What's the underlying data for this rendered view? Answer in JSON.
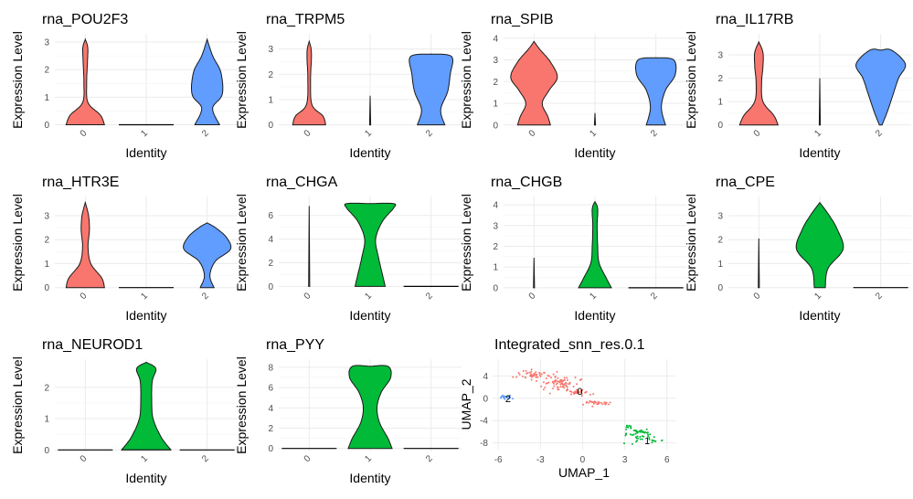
{
  "chart_data": [
    {
      "type": "violin",
      "title": "rna_POU2F3",
      "xlabel": "Identity",
      "ylabel": "Expression Level",
      "categories": [
        "0",
        "1",
        "2"
      ],
      "colors": [
        "#F8766D",
        "#00BA38",
        "#619CFF"
      ],
      "ylim": [
        -0.05,
        3.3
      ],
      "yticks": [
        0,
        1,
        2,
        3
      ],
      "ymax": [
        3.1,
        0,
        3.1
      ],
      "profiles": [
        [
          [
            0,
            0.7
          ],
          [
            0.35,
            0.55
          ],
          [
            0.8,
            0.1
          ],
          [
            1.5,
            0.05
          ],
          [
            2.3,
            0.08
          ],
          [
            2.8,
            0.09
          ],
          [
            3.1,
            0
          ]
        ],
        [
          [
            0,
            1
          ],
          [
            0,
            0
          ]
        ],
        [
          [
            0,
            0.45
          ],
          [
            0.6,
            0.2
          ],
          [
            1.1,
            0.55
          ],
          [
            1.9,
            0.5
          ],
          [
            2.5,
            0.2
          ],
          [
            3.1,
            0
          ]
        ]
      ]
    },
    {
      "type": "violin",
      "title": "rna_TRPM5",
      "xlabel": "Identity",
      "ylabel": "Expression Level",
      "categories": [
        "0",
        "1",
        "2"
      ],
      "colors": [
        "#F8766D",
        "#00BA38",
        "#619CFF"
      ],
      "ylim": [
        -0.05,
        3.6
      ],
      "yticks": [
        0,
        1,
        2,
        3
      ],
      "ymax": [
        3.3,
        1.15,
        2.8
      ],
      "profiles": [
        [
          [
            0,
            0.6
          ],
          [
            0.35,
            0.5
          ],
          [
            0.8,
            0.1
          ],
          [
            1.8,
            0.05
          ],
          [
            2.6,
            0.08
          ],
          [
            3.0,
            0.07
          ],
          [
            3.3,
            0
          ]
        ],
        [
          [
            0,
            0.02
          ],
          [
            1.15,
            0
          ]
        ],
        [
          [
            0,
            0.5
          ],
          [
            0.6,
            0.35
          ],
          [
            1.3,
            0.6
          ],
          [
            2.0,
            0.7
          ],
          [
            2.7,
            0.75
          ],
          [
            2.8,
            0
          ]
        ]
      ]
    },
    {
      "type": "violin",
      "title": "rna_SPIB",
      "xlabel": "Identity",
      "ylabel": "Expression Level",
      "categories": [
        "0",
        "1",
        "2"
      ],
      "colors": [
        "#F8766D",
        "#00BA38",
        "#619CFF"
      ],
      "ylim": [
        -0.05,
        4.2
      ],
      "yticks": [
        0,
        1,
        2,
        3,
        4
      ],
      "ymax": [
        3.85,
        0.55,
        3.1
      ],
      "profiles": [
        [
          [
            0,
            0.6
          ],
          [
            0.4,
            0.5
          ],
          [
            1.0,
            0.3
          ],
          [
            1.6,
            0.55
          ],
          [
            2.2,
            0.85
          ],
          [
            2.9,
            0.6
          ],
          [
            3.5,
            0.2
          ],
          [
            3.85,
            0
          ]
        ],
        [
          [
            0,
            0.02
          ],
          [
            0.55,
            0
          ]
        ],
        [
          [
            0,
            0.35
          ],
          [
            0.8,
            0.2
          ],
          [
            1.6,
            0.35
          ],
          [
            2.3,
            0.7
          ],
          [
            3.0,
            0.65
          ],
          [
            3.1,
            0
          ]
        ]
      ]
    },
    {
      "type": "violin",
      "title": "rna_IL17RB",
      "xlabel": "Identity",
      "ylabel": "Expression Level",
      "categories": [
        "0",
        "1",
        "2"
      ],
      "colors": [
        "#F8766D",
        "#00BA38",
        "#619CFF"
      ],
      "ylim": [
        -0.05,
        3.9
      ],
      "yticks": [
        0,
        1,
        2,
        3
      ],
      "ymax": [
        3.55,
        2.0,
        3.2
      ],
      "profiles": [
        [
          [
            0,
            0.7
          ],
          [
            0.4,
            0.55
          ],
          [
            1.0,
            0.15
          ],
          [
            1.8,
            0.1
          ],
          [
            2.5,
            0.15
          ],
          [
            3.1,
            0.15
          ],
          [
            3.55,
            0
          ]
        ],
        [
          [
            0,
            0.02
          ],
          [
            2.0,
            0
          ]
        ],
        [
          [
            0,
            0.05
          ],
          [
            0.6,
            0.25
          ],
          [
            1.3,
            0.45
          ],
          [
            2.0,
            0.65
          ],
          [
            2.6,
            0.9
          ],
          [
            3.2,
            0.4
          ],
          [
            3.2,
            0
          ]
        ]
      ]
    },
    {
      "type": "violin",
      "title": "rna_HTR3E",
      "xlabel": "Identity",
      "ylabel": "Expression Level",
      "categories": [
        "0",
        "1",
        "2"
      ],
      "colors": [
        "#F8766D",
        "#00BA38",
        "#619CFF"
      ],
      "ylim": [
        -0.05,
        3.8
      ],
      "yticks": [
        0,
        1,
        2,
        3
      ],
      "ymax": [
        3.55,
        0,
        2.7
      ],
      "profiles": [
        [
          [
            0,
            0.7
          ],
          [
            0.4,
            0.6
          ],
          [
            1.0,
            0.2
          ],
          [
            1.7,
            0.1
          ],
          [
            2.4,
            0.15
          ],
          [
            3.0,
            0.12
          ],
          [
            3.55,
            0
          ]
        ],
        [
          [
            0,
            1
          ],
          [
            0,
            0
          ]
        ],
        [
          [
            0,
            0.25
          ],
          [
            0.5,
            0.1
          ],
          [
            1.1,
            0.3
          ],
          [
            1.6,
            0.85
          ],
          [
            2.1,
            0.7
          ],
          [
            2.5,
            0.3
          ],
          [
            2.7,
            0
          ]
        ]
      ]
    },
    {
      "type": "violin",
      "title": "rna_CHGA",
      "xlabel": "Identity",
      "ylabel": "Expression Level",
      "categories": [
        "0",
        "1",
        "2"
      ],
      "colors": [
        "#F8766D",
        "#00BA38",
        "#619CFF"
      ],
      "ylim": [
        -0.2,
        7.6
      ],
      "yticks": [
        0,
        2,
        4,
        6
      ],
      "ymax": [
        6.8,
        7.0,
        0
      ],
      "profiles": [
        [
          [
            0,
            0.02
          ],
          [
            6.8,
            0
          ]
        ],
        [
          [
            0,
            0.55
          ],
          [
            1.0,
            0.45
          ],
          [
            2.5,
            0.3
          ],
          [
            4.0,
            0.2
          ],
          [
            5.5,
            0.45
          ],
          [
            6.6,
            0.85
          ],
          [
            7.0,
            0.85
          ],
          [
            7.0,
            0
          ]
        ],
        [
          [
            0,
            1
          ],
          [
            0,
            0
          ]
        ]
      ]
    },
    {
      "type": "violin",
      "title": "rna_CHGB",
      "xlabel": "Identity",
      "ylabel": "Expression Level",
      "categories": [
        "0",
        "1",
        "2"
      ],
      "colors": [
        "#F8766D",
        "#00BA38",
        "#619CFF"
      ],
      "ylim": [
        -0.05,
        4.4
      ],
      "yticks": [
        0,
        1,
        2,
        3,
        4
      ],
      "ymax": [
        1.45,
        4.15,
        0
      ],
      "profiles": [
        [
          [
            0,
            0.02
          ],
          [
            1.45,
            0
          ]
        ],
        [
          [
            0,
            0.6
          ],
          [
            0.5,
            0.4
          ],
          [
            1.2,
            0.15
          ],
          [
            2.0,
            0.1
          ],
          [
            3.0,
            0.08
          ],
          [
            3.8,
            0.1
          ],
          [
            4.15,
            0
          ]
        ],
        [
          [
            0,
            1
          ],
          [
            0,
            0
          ]
        ]
      ]
    },
    {
      "type": "violin",
      "title": "rna_CPE",
      "xlabel": "Identity",
      "ylabel": "Expression Level",
      "categories": [
        "0",
        "1",
        "2"
      ],
      "colors": [
        "#F8766D",
        "#00BA38",
        "#619CFF"
      ],
      "ylim": [
        -0.05,
        3.8
      ],
      "yticks": [
        0,
        1,
        2,
        3
      ],
      "ymax": [
        2.05,
        3.55,
        0
      ],
      "profiles": [
        [
          [
            0,
            0.02
          ],
          [
            2.05,
            0
          ]
        ],
        [
          [
            0,
            0.2
          ],
          [
            0.8,
            0.3
          ],
          [
            1.6,
            0.85
          ],
          [
            2.4,
            0.65
          ],
          [
            3.0,
            0.35
          ],
          [
            3.55,
            0
          ]
        ],
        [
          [
            0,
            1
          ],
          [
            0,
            0
          ]
        ]
      ]
    },
    {
      "type": "violin",
      "title": "rna_NEUROD1",
      "xlabel": "Identity",
      "ylabel": "Expression Level",
      "categories": [
        "0",
        "1",
        "2"
      ],
      "colors": [
        "#F8766D",
        "#00BA38",
        "#619CFF"
      ],
      "ylim": [
        -0.05,
        2.9
      ],
      "yticks": [
        0,
        1,
        2
      ],
      "ymax": [
        0,
        2.8,
        0
      ],
      "profiles": [
        [
          [
            0,
            1
          ],
          [
            0,
            0
          ]
        ],
        [
          [
            0,
            0.9
          ],
          [
            0.4,
            0.55
          ],
          [
            1.0,
            0.25
          ],
          [
            1.6,
            0.2
          ],
          [
            2.2,
            0.22
          ],
          [
            2.6,
            0.35
          ],
          [
            2.8,
            0
          ]
        ],
        [
          [
            0,
            1
          ],
          [
            0,
            0
          ]
        ]
      ]
    },
    {
      "type": "violin",
      "title": "rna_PYY",
      "xlabel": "Identity",
      "ylabel": "Expression Level",
      "categories": [
        "0",
        "1",
        "2"
      ],
      "colors": [
        "#F8766D",
        "#00BA38",
        "#619CFF"
      ],
      "ylim": [
        -0.3,
        8.8
      ],
      "yticks": [
        0,
        2,
        4,
        6,
        8
      ],
      "ymax": [
        0,
        8.1,
        0
      ],
      "profiles": [
        [
          [
            0,
            1
          ],
          [
            0,
            0
          ]
        ],
        [
          [
            0,
            0.8
          ],
          [
            1.0,
            0.65
          ],
          [
            2.5,
            0.35
          ],
          [
            4.0,
            0.25
          ],
          [
            5.5,
            0.4
          ],
          [
            7.0,
            0.75
          ],
          [
            8.1,
            0.65
          ],
          [
            8.1,
            0
          ]
        ],
        [
          [
            0,
            1
          ],
          [
            0,
            0
          ]
        ]
      ]
    },
    {
      "type": "scatter",
      "title": "Integrated_snn_res.0.1",
      "xlabel": "UMAP_1",
      "ylabel": "UMAP_2",
      "xlim": [
        -6.4,
        6.6
      ],
      "ylim": [
        -9.2,
        7.0
      ],
      "xticks": [
        -6,
        -3,
        0,
        3,
        6
      ],
      "yticks": [
        4,
        0,
        -4,
        -8
      ],
      "series": [
        {
          "cluster": "0",
          "color": "#F8766D",
          "label_pos": [
            -0.2,
            1.3
          ],
          "blobs": [
            [
              -3.5,
              4.2,
              1.0,
              0.8,
              45
            ],
            [
              -1.6,
              3.0,
              1.1,
              1.4,
              70
            ],
            [
              -0.3,
              1.0,
              0.7,
              0.5,
              30
            ],
            [
              1.0,
              -0.8,
              0.9,
              0.4,
              30
            ]
          ]
        },
        {
          "cluster": "1",
          "color": "#00BA38",
          "label_pos": [
            4.6,
            -7.6
          ],
          "blobs": [
            [
              4.0,
              -6.5,
              1.0,
              1.0,
              45
            ],
            [
              3.2,
              -5.2,
              0.3,
              0.3,
              8
            ],
            [
              5.4,
              -7.5,
              0.5,
              0.5,
              10
            ]
          ]
        },
        {
          "cluster": "2",
          "color": "#619CFF",
          "label_pos": [
            -5.3,
            0.0
          ],
          "blobs": [
            [
              -5.5,
              0.2,
              0.5,
              0.35,
              20
            ]
          ]
        }
      ]
    }
  ]
}
